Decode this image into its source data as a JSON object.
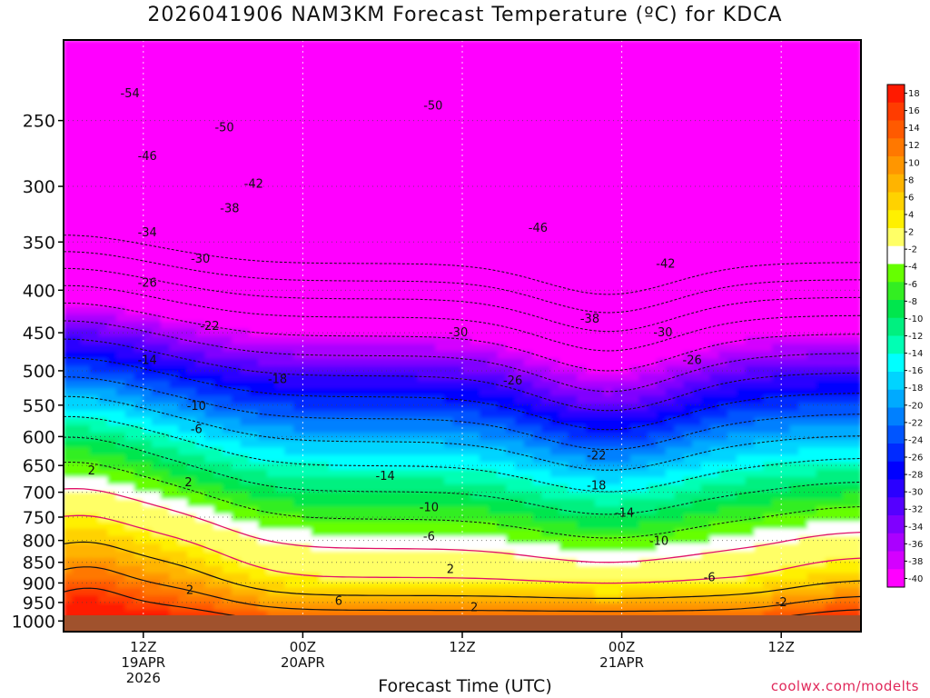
{
  "header": {
    "title": "2026041906 NAM3KM Forecast Temperature (ºC) for KDCA"
  },
  "footer": {
    "x_axis_title": "Forecast Time (UTC)",
    "credit": "coolwx.com/modelts"
  },
  "chart_data": {
    "type": "heatmap",
    "title": "2026041906 NAM3KM Forecast Temperature (ºC) for KDCA",
    "xlabel": "Forecast Time (UTC)",
    "ylabel": "",
    "y_log_pressure": true,
    "y_range_hpa": [
      1030,
      200
    ],
    "x_range_hours": [
      0,
      60
    ],
    "y_ticks": [
      250,
      300,
      350,
      400,
      450,
      500,
      550,
      600,
      650,
      700,
      750,
      800,
      850,
      900,
      950,
      1000
    ],
    "x_ticks": [
      {
        "hour": 6,
        "lines": [
          "12Z",
          "19APR",
          "2026"
        ]
      },
      {
        "hour": 18,
        "lines": [
          "00Z",
          "20APR"
        ]
      },
      {
        "hour": 30,
        "lines": [
          "12Z"
        ]
      },
      {
        "hour": 42,
        "lines": [
          "00Z",
          "21APR"
        ]
      },
      {
        "hour": 54,
        "lines": [
          "12Z"
        ]
      }
    ],
    "colorbar": {
      "labels": [
        "18",
        "16",
        "14",
        "12",
        "10",
        "8",
        "6",
        "4",
        "2",
        "-2",
        "-4",
        "-6",
        "-8",
        "-10",
        "-12",
        "-14",
        "-16",
        "-18",
        "-20",
        "-22",
        "-24",
        "-26",
        "-28",
        "-30",
        "-32",
        "-34",
        "-36",
        "-38",
        "-40"
      ],
      "colors": [
        "#ff1a00",
        "#ff3c00",
        "#ff5a00",
        "#ff7800",
        "#ff9600",
        "#ffb400",
        "#ffd200",
        "#fff000",
        "#ffff66",
        "#ffffff",
        "#66ff00",
        "#33ee22",
        "#00e64d",
        "#00f080",
        "#00ffb4",
        "#00ffff",
        "#00d4ff",
        "#00aaff",
        "#0080ff",
        "#0055ff",
        "#002aff",
        "#0000ff",
        "#2a00ff",
        "#5500ff",
        "#8000ff",
        "#aa00ff",
        "#d400ff",
        "#ff00ff"
      ]
    },
    "contour_labels": [
      {
        "text": "-54",
        "hour": 5.0,
        "p": 232
      },
      {
        "text": "-50",
        "hour": 12.1,
        "p": 255
      },
      {
        "text": "-50",
        "hour": 27.8,
        "p": 240
      },
      {
        "text": "-46",
        "hour": 6.3,
        "p": 276
      },
      {
        "text": "-42",
        "hour": 14.3,
        "p": 298
      },
      {
        "text": "-38",
        "hour": 12.5,
        "p": 319
      },
      {
        "text": "-46",
        "hour": 35.7,
        "p": 337
      },
      {
        "text": "-34",
        "hour": 6.3,
        "p": 341
      },
      {
        "text": "-30",
        "hour": 10.3,
        "p": 367
      },
      {
        "text": "-42",
        "hour": 45.3,
        "p": 372
      },
      {
        "text": "-26",
        "hour": 6.3,
        "p": 392
      },
      {
        "text": "-38",
        "hour": 39.6,
        "p": 433
      },
      {
        "text": "-22",
        "hour": 11.0,
        "p": 442
      },
      {
        "text": "-30",
        "hour": 29.7,
        "p": 450
      },
      {
        "text": "-30",
        "hour": 45.1,
        "p": 450
      },
      {
        "text": "-14",
        "hour": 6.3,
        "p": 486
      },
      {
        "text": "-26",
        "hour": 47.3,
        "p": 486
      },
      {
        "text": "-18",
        "hour": 16.1,
        "p": 512
      },
      {
        "text": "-26",
        "hour": 33.8,
        "p": 514
      },
      {
        "text": "-10",
        "hour": 10.0,
        "p": 552
      },
      {
        "text": "-6",
        "hour": 10.0,
        "p": 588
      },
      {
        "text": "-22",
        "hour": 40.1,
        "p": 633
      },
      {
        "text": "2",
        "hour": 2.1,
        "p": 660
      },
      {
        "text": "-14",
        "hour": 24.2,
        "p": 670
      },
      {
        "text": "2",
        "hour": 9.4,
        "p": 682
      },
      {
        "text": "-18",
        "hour": 40.1,
        "p": 688
      },
      {
        "text": "-10",
        "hour": 27.5,
        "p": 730
      },
      {
        "text": "-14",
        "hour": 42.2,
        "p": 742
      },
      {
        "text": "-6",
        "hour": 27.5,
        "p": 792
      },
      {
        "text": "-10",
        "hour": 44.8,
        "p": 802
      },
      {
        "text": "2",
        "hour": 29.1,
        "p": 867
      },
      {
        "text": "-6",
        "hour": 48.6,
        "p": 887
      },
      {
        "text": "2",
        "hour": 9.5,
        "p": 918
      },
      {
        "text": "6",
        "hour": 20.7,
        "p": 947
      },
      {
        "text": "2",
        "hour": 30.9,
        "p": 964
      },
      {
        "text": "-2",
        "hour": 54.0,
        "p": 950
      }
    ]
  }
}
